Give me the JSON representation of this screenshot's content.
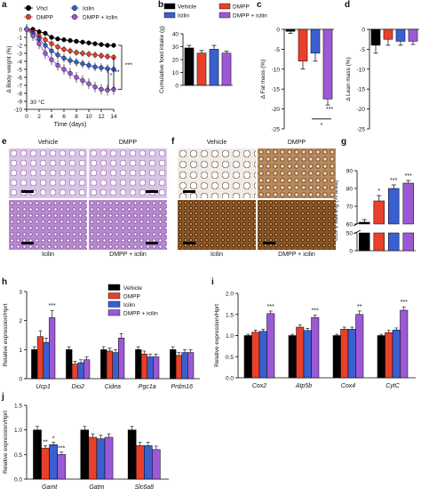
{
  "colors": {
    "vehicle": "#000000",
    "dmpp": "#e8402a",
    "icilin": "#3a5fd0",
    "combo": "#9b59d6"
  },
  "panels": {
    "a": "a",
    "b": "b",
    "c": "c",
    "d": "d",
    "e": "e",
    "f": "f",
    "g": "g",
    "h": "h",
    "i": "i",
    "j": "j"
  },
  "micro": {
    "vehicle": "Vehicle",
    "dmpp": "DMPP",
    "icilin": "Icilin",
    "combo": "DMPP + icilin"
  },
  "chart_data": [
    {
      "id": "a",
      "type": "line",
      "xlabel": "Time (days)",
      "ylabel": "Δ Body weight (%)",
      "xlim": [
        0,
        14
      ],
      "ylim": [
        -10,
        0
      ],
      "xticks": [
        0,
        2,
        4,
        6,
        8,
        10,
        12,
        14
      ],
      "yticks": [
        0,
        -1,
        -2,
        -3,
        -4,
        -5,
        -6,
        -7,
        -8,
        -9,
        -10
      ],
      "annotation": "30 °C",
      "legend": [
        "Vhcl",
        "DMPP",
        "Icilin",
        "DMPP + Icilin"
      ],
      "significance": [
        "***",
        "**",
        "*"
      ],
      "x": [
        0,
        1,
        2,
        3,
        4,
        5,
        6,
        7,
        8,
        9,
        10,
        11,
        12,
        13,
        14
      ],
      "series": [
        {
          "name": "Vhcl",
          "values": [
            0,
            0,
            -0.3,
            -0.5,
            -1.0,
            -1.2,
            -1.3,
            -1.4,
            -1.5,
            -1.6,
            -1.7,
            -1.8,
            -1.9,
            -2.0,
            -2.0
          ]
        },
        {
          "name": "DMPP",
          "values": [
            0,
            -0.3,
            -0.8,
            -1.3,
            -1.8,
            -2.2,
            -2.5,
            -2.7,
            -2.9,
            -3.0,
            -3.1,
            -3.2,
            -3.3,
            -3.4,
            -3.5
          ]
        },
        {
          "name": "Icilin",
          "values": [
            0,
            -0.5,
            -1.2,
            -2.0,
            -2.7,
            -3.2,
            -3.6,
            -3.9,
            -4.1,
            -4.3,
            -4.5,
            -4.7,
            -4.8,
            -4.9,
            -5.0
          ]
        },
        {
          "name": "DMPP + Icilin",
          "values": [
            0,
            -0.8,
            -1.8,
            -3.0,
            -3.8,
            -4.5,
            -5.0,
            -5.5,
            -6.0,
            -6.4,
            -6.8,
            -7.2,
            -7.5,
            -7.6,
            -7.5
          ]
        }
      ]
    },
    {
      "id": "b",
      "type": "bar",
      "ylabel": "Cumulative food intake (g)",
      "ylim": [
        0,
        40
      ],
      "yticks": [
        0,
        10,
        20,
        30,
        40
      ],
      "categories": [
        "Vehicle",
        "DMPP",
        "Icilin",
        "DMPP + icilin"
      ],
      "values": [
        29,
        25,
        28,
        25
      ],
      "errors": [
        2,
        2,
        3,
        1.5
      ]
    },
    {
      "id": "c",
      "type": "bar",
      "ylabel": "Δ Fat mass (%)",
      "ylim": [
        -25,
        0
      ],
      "yticks": [
        0,
        -5,
        -10,
        -15,
        -20,
        -25
      ],
      "categories": [
        "Vehicle",
        "DMPP",
        "Icilin",
        "DMPP + icilin"
      ],
      "values": [
        -0.5,
        -8,
        -6,
        -17.5
      ],
      "errors": [
        0.5,
        2,
        2,
        1.5
      ],
      "significance": [
        "***",
        "*"
      ]
    },
    {
      "id": "d",
      "type": "bar",
      "ylabel": "Δ Lean mass (%)",
      "ylim": [
        -25,
        0
      ],
      "yticks": [
        0,
        -5,
        -10,
        -15,
        -20,
        -25
      ],
      "categories": [
        "Vehicle",
        "DMPP",
        "Icilin",
        "DMPP + icilin"
      ],
      "values": [
        -4,
        -2.5,
        -3,
        -3
      ],
      "errors": [
        2,
        1.5,
        1,
        0.8
      ]
    },
    {
      "id": "g",
      "type": "bar",
      "ylabel": "UCP1 staining (% area)",
      "yticks_lower": [
        0,
        50
      ],
      "yticks_upper": [
        60,
        70,
        80,
        90
      ],
      "ylim": [
        0,
        90
      ],
      "categories": [
        "Vehicle",
        "DMPP",
        "Icilin",
        "DMPP + icilin"
      ],
      "values": [
        61,
        73,
        80,
        83
      ],
      "errors": [
        1.5,
        3,
        2,
        1.5
      ],
      "significance": [
        "*",
        "***",
        "***"
      ]
    },
    {
      "id": "h",
      "type": "bar",
      "ylabel": "Relative expression/Hprt",
      "ylim": [
        0,
        3
      ],
      "yticks": [
        0,
        1,
        2,
        3
      ],
      "categories": [
        "Ucp1",
        "Dio2",
        "Cidea",
        "Pgc1a",
        "Prdm16"
      ],
      "legend": [
        "Vehicle",
        "DMPP",
        "Icilin",
        "DMPP + icilin"
      ],
      "series": [
        {
          "name": "Vehicle",
          "values": [
            1.0,
            1.0,
            1.0,
            1.0,
            1.0
          ],
          "errors": [
            0.1,
            0.1,
            0.1,
            0.1,
            0.1
          ]
        },
        {
          "name": "DMPP",
          "values": [
            1.45,
            0.5,
            0.95,
            0.85,
            0.8
          ],
          "errors": [
            0.2,
            0.1,
            0.1,
            0.1,
            0.1
          ]
        },
        {
          "name": "Icilin",
          "values": [
            1.25,
            0.55,
            0.9,
            0.75,
            0.9
          ],
          "errors": [
            0.15,
            0.1,
            0.1,
            0.1,
            0.1
          ]
        },
        {
          "name": "DMPP + icilin",
          "values": [
            2.1,
            0.65,
            1.4,
            0.75,
            0.9
          ],
          "errors": [
            0.25,
            0.1,
            0.15,
            0.1,
            0.1
          ]
        }
      ],
      "significance": [
        "***"
      ]
    },
    {
      "id": "i",
      "type": "bar",
      "ylabel": "Relative expression/Hprt",
      "ylim": [
        0,
        2
      ],
      "yticks": [
        0,
        0.5,
        1.0,
        1.5,
        2.0
      ],
      "categories": [
        "Cox2",
        "Atp5b",
        "Cox4",
        "CytC"
      ],
      "series": [
        {
          "name": "Vehicle",
          "values": [
            1.0,
            1.0,
            1.0,
            1.0
          ],
          "errors": [
            0.03,
            0.03,
            0.03,
            0.03
          ]
        },
        {
          "name": "DMPP",
          "values": [
            1.08,
            1.2,
            1.15,
            1.07
          ],
          "errors": [
            0.05,
            0.05,
            0.05,
            0.05
          ]
        },
        {
          "name": "Icilin",
          "values": [
            1.1,
            1.12,
            1.15,
            1.13
          ],
          "errors": [
            0.05,
            0.05,
            0.05,
            0.05
          ]
        },
        {
          "name": "DMPP + icilin",
          "values": [
            1.52,
            1.43,
            1.5,
            1.6
          ],
          "errors": [
            0.06,
            0.05,
            0.08,
            0.08
          ]
        }
      ],
      "significance": [
        "***",
        "***",
        "**",
        "***"
      ]
    },
    {
      "id": "j",
      "type": "bar",
      "ylabel": "Relative expression/Hprt",
      "ylim": [
        0,
        1.5
      ],
      "yticks": [
        0,
        0.5,
        1.0,
        1.5
      ],
      "categories": [
        "Gamt",
        "Gatm",
        "Slc6a8"
      ],
      "series": [
        {
          "name": "Vehicle",
          "values": [
            1.0,
            1.0,
            1.0
          ],
          "errors": [
            0.07,
            0.07,
            0.07
          ]
        },
        {
          "name": "DMPP",
          "values": [
            0.63,
            0.85,
            0.68
          ],
          "errors": [
            0.05,
            0.07,
            0.07
          ]
        },
        {
          "name": "Icilin",
          "values": [
            0.7,
            0.82,
            0.68
          ],
          "errors": [
            0.05,
            0.07,
            0.07
          ]
        },
        {
          "name": "DMPP + icilin",
          "values": [
            0.5,
            0.85,
            0.6
          ],
          "errors": [
            0.05,
            0.07,
            0.07
          ]
        }
      ],
      "significance": [
        "**",
        "*",
        "***"
      ]
    }
  ]
}
